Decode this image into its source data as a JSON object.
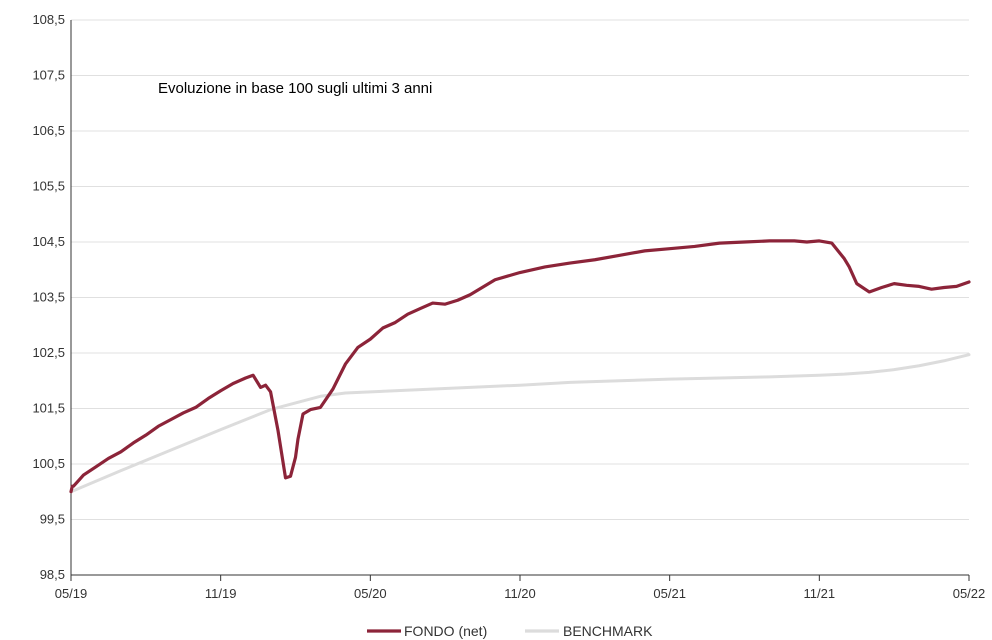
{
  "chart_data": {
    "type": "line",
    "title": "Evoluzione in base 100 sugli ultimi 3 anni",
    "xlabel": "",
    "ylabel": "",
    "ylim": [
      98.5,
      108.5
    ],
    "yticks": [
      "98,5",
      "99,5",
      "100,5",
      "101,5",
      "102,5",
      "103,5",
      "104,5",
      "105,5",
      "106,5",
      "107,5",
      "108,5"
    ],
    "xticks": [
      "05/19",
      "11/19",
      "05/20",
      "11/20",
      "05/21",
      "11/21",
      "05/22"
    ],
    "grid": "horizontal",
    "legend_position": "bottom",
    "series": [
      {
        "name": "FONDO (net)",
        "color": "#8c2439",
        "x": [
          0,
          0.05,
          0.1,
          0.3,
          0.5,
          1,
          1.5,
          2,
          2.5,
          3,
          3.5,
          4,
          4.5,
          5,
          5.5,
          6,
          6.5,
          7,
          7.3,
          7.6,
          7.8,
          8,
          8.3,
          8.6,
          8.8,
          9,
          9.1,
          9.3,
          9.6,
          10,
          10.5,
          11,
          11.5,
          12,
          12.5,
          13,
          13.5,
          14,
          14.5,
          15,
          15.5,
          16,
          17,
          18,
          19,
          20,
          21,
          22,
          23,
          24,
          25,
          26,
          27,
          28,
          29,
          29.5,
          30,
          30.5,
          31,
          31.2,
          31.5,
          32,
          32.5,
          33,
          33.5,
          34,
          34.5,
          35,
          35.5,
          36
        ],
        "values": [
          100.0,
          100.1,
          100.1,
          100.2,
          100.3,
          100.45,
          100.6,
          100.72,
          100.88,
          101.02,
          101.18,
          101.3,
          101.42,
          101.52,
          101.68,
          101.82,
          101.95,
          102.05,
          102.1,
          101.88,
          101.92,
          101.8,
          101.1,
          100.25,
          100.28,
          100.62,
          100.95,
          101.4,
          101.48,
          101.52,
          101.85,
          102.3,
          102.6,
          102.75,
          102.95,
          103.05,
          103.2,
          103.3,
          103.4,
          103.38,
          103.45,
          103.55,
          103.82,
          103.95,
          104.05,
          104.12,
          104.18,
          104.26,
          104.34,
          104.38,
          104.42,
          104.48,
          104.5,
          104.52,
          104.52,
          104.5,
          104.52,
          104.48,
          104.2,
          104.05,
          103.75,
          103.6,
          103.68,
          103.75,
          103.72,
          103.7,
          103.65,
          103.68,
          103.7,
          103.78
        ]
      },
      {
        "name": "BENCHMARK",
        "color": "#dcdcdc",
        "x": [
          0,
          2,
          4,
          6,
          8,
          9,
          10,
          11,
          12,
          14,
          16,
          18,
          20,
          22,
          24,
          26,
          28,
          30,
          31,
          32,
          33,
          34,
          35,
          36
        ],
        "values": [
          100.0,
          100.38,
          100.75,
          101.12,
          101.48,
          101.6,
          101.72,
          101.78,
          101.8,
          101.84,
          101.88,
          101.92,
          101.97,
          102.0,
          102.03,
          102.05,
          102.07,
          102.1,
          102.12,
          102.15,
          102.2,
          102.27,
          102.36,
          102.47
        ]
      }
    ]
  }
}
